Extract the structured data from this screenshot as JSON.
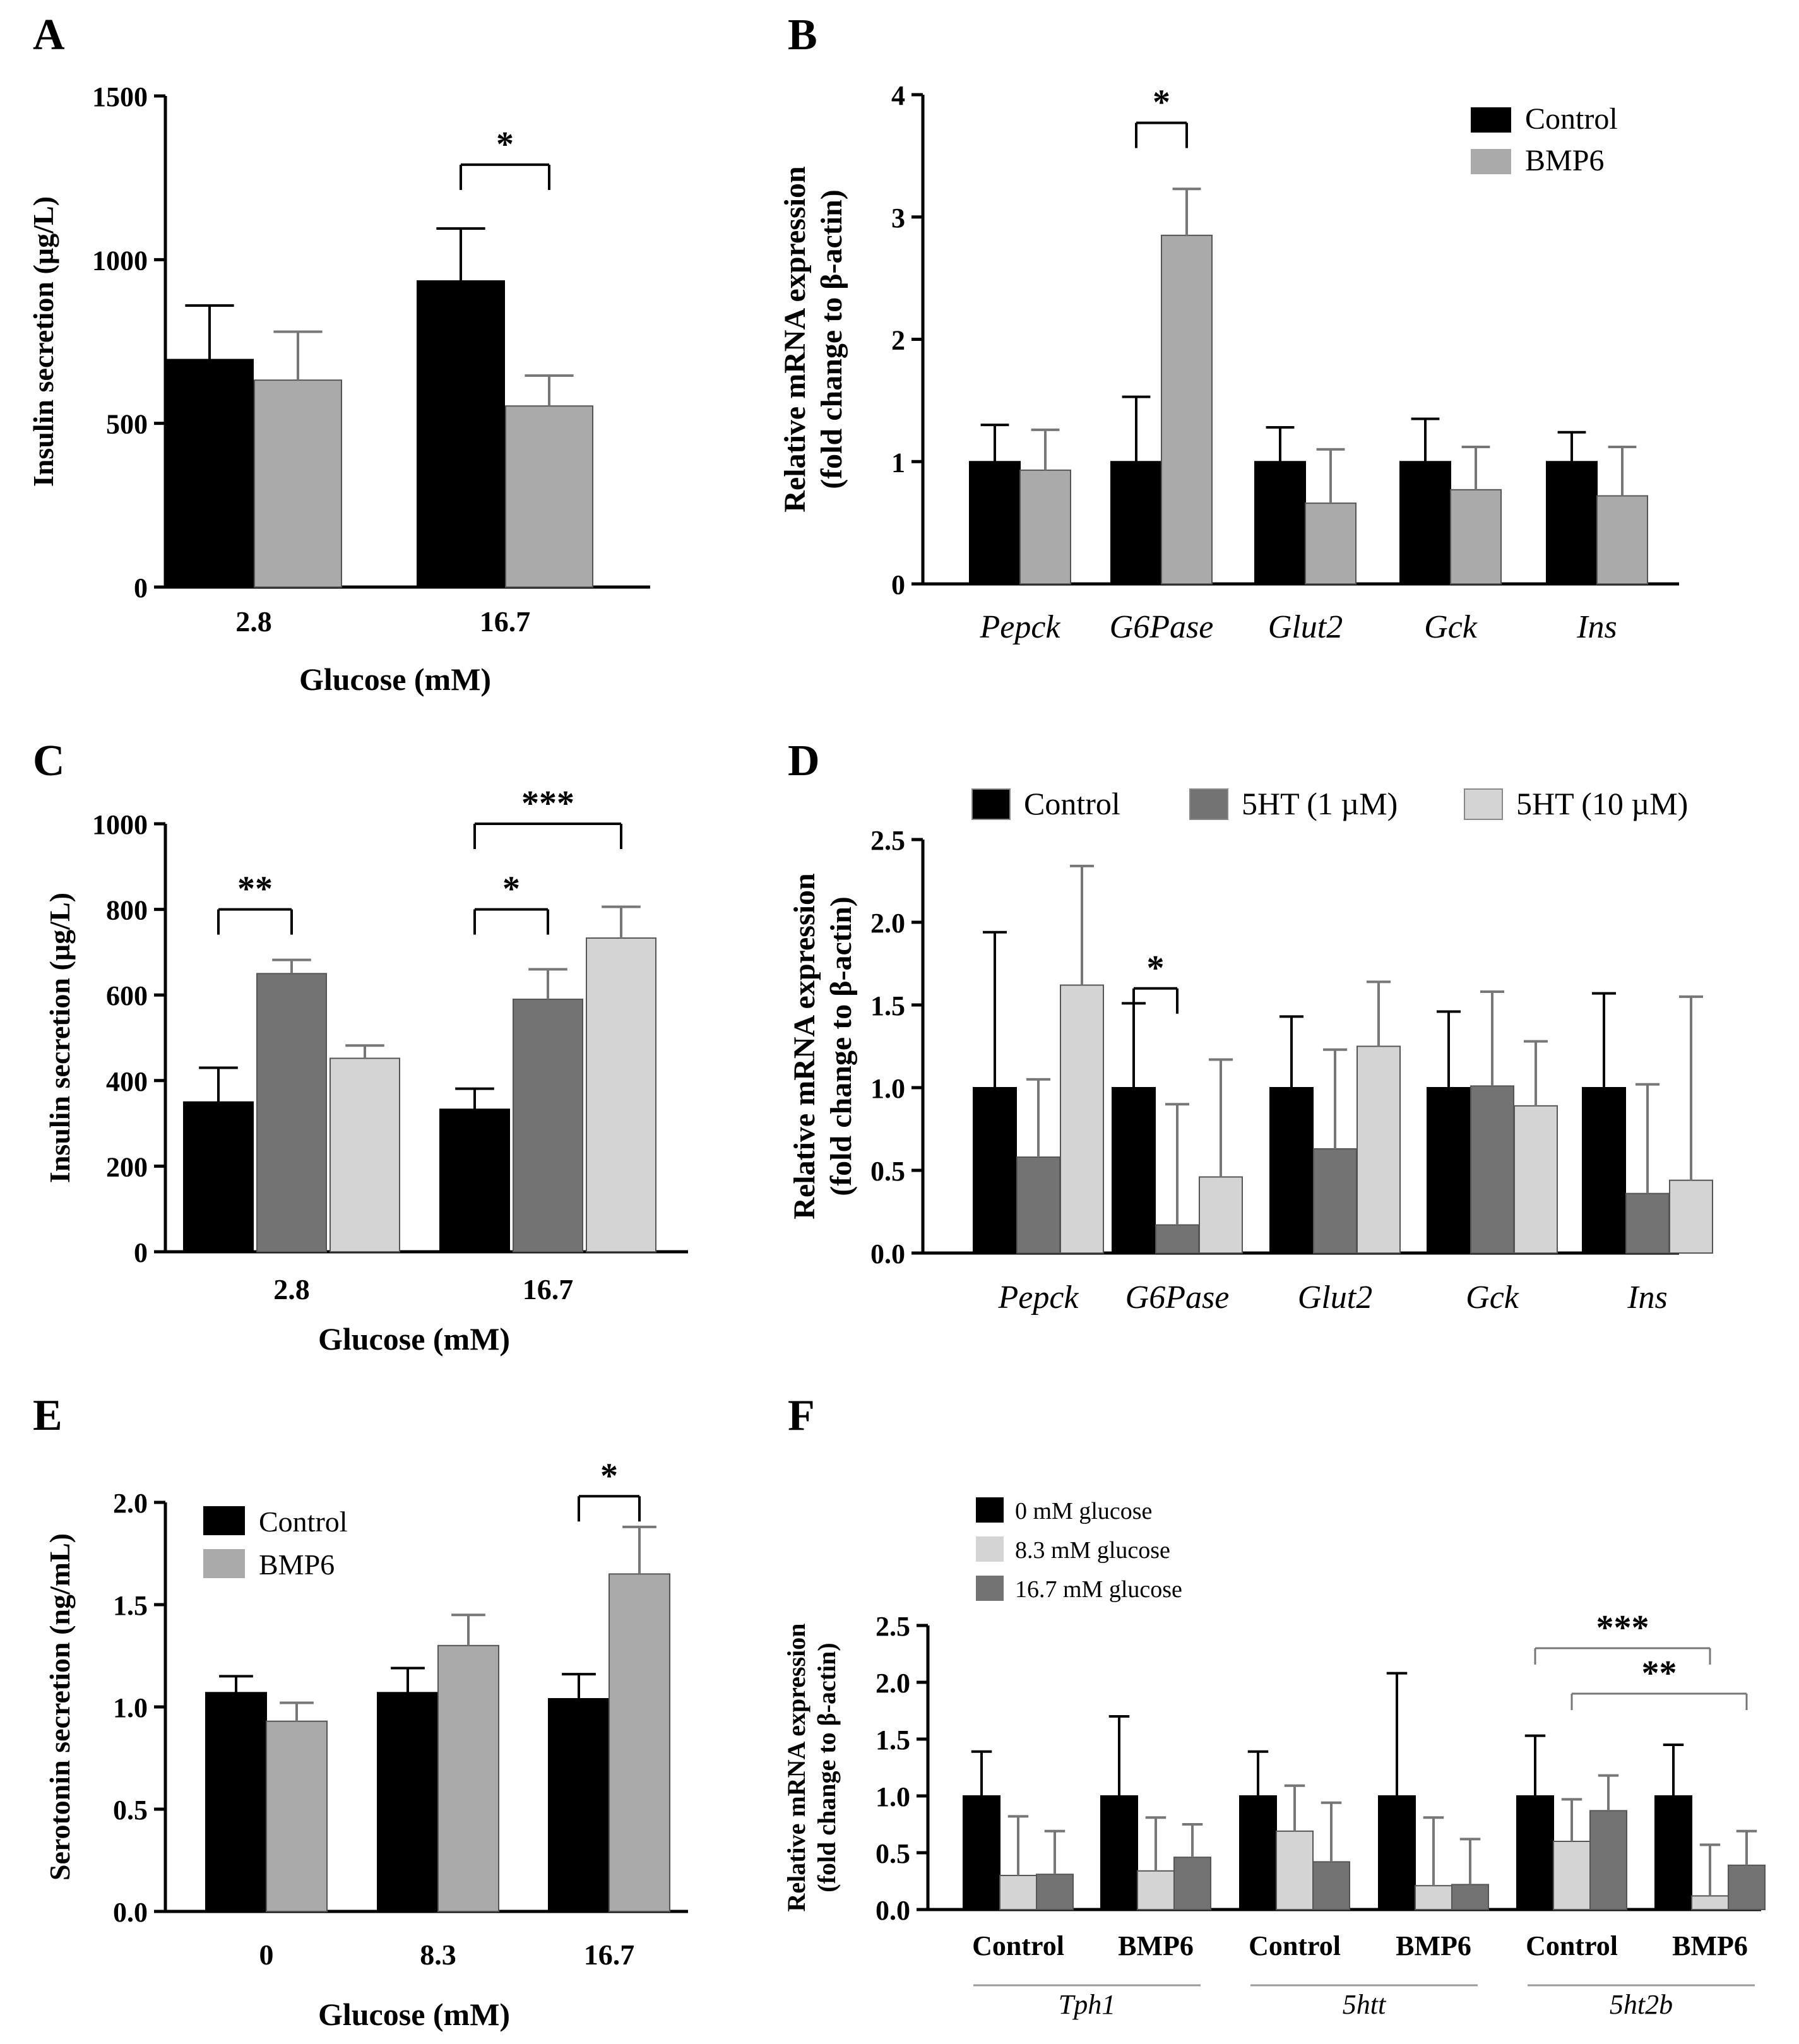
{
  "colors": {
    "black": "#000000",
    "light_gray": "#aaaaaa",
    "mid_gray": "#737373",
    "pale_gray": "#d4d4d4",
    "axis": "#000000",
    "thin_line": "#777777"
  },
  "chart_data": [
    {
      "panel": "A",
      "type": "bar",
      "categories": [
        "2.8",
        "16.7"
      ],
      "xlabel": "Glucose (mM)",
      "ylabel": "Insulin secretion (µg/L)",
      "ylim": [
        0,
        1500
      ],
      "yticks": [
        "0",
        "500",
        "1000",
        "1500"
      ],
      "series": [
        {
          "name": "Control",
          "values": [
            695,
            935
          ],
          "errors": [
            165,
            160
          ]
        },
        {
          "name": "BMP6",
          "values": [
            632,
            553
          ],
          "errors": [
            148,
            93
          ]
        }
      ],
      "annotations": [
        {
          "label": "*",
          "category": 1,
          "from_series": 0,
          "to_series": 1,
          "level": 1290
        }
      ]
    },
    {
      "panel": "B",
      "type": "bar",
      "categories": [
        "Pepck",
        "G6Pase",
        "Glut2",
        "Gck",
        "Ins"
      ],
      "xlabel": "",
      "ylabel": "Relative mRNA expression (fold change to β-actin)",
      "ylim": [
        0,
        4
      ],
      "yticks": [
        "0",
        "1",
        "2",
        "3",
        "4"
      ],
      "legend": [
        "Control",
        "BMP6"
      ],
      "series": [
        {
          "name": "Control",
          "values": [
            1.0,
            1.0,
            1.0,
            1.0,
            1.0
          ],
          "errors": [
            0.3,
            0.53,
            0.28,
            0.35,
            0.24
          ]
        },
        {
          "name": "BMP6",
          "values": [
            0.93,
            2.85,
            0.66,
            0.77,
            0.72
          ],
          "errors": [
            0.33,
            0.38,
            0.44,
            0.35,
            0.4
          ]
        }
      ],
      "annotations": [
        {
          "label": "*",
          "category": 1,
          "from_series": 0,
          "to_series": 1,
          "level": 3.77
        }
      ]
    },
    {
      "panel": "C",
      "type": "bar",
      "categories": [
        "2.8",
        "16.7"
      ],
      "xlabel": "Glucose (mM)",
      "ylabel": "Insulin secretion (µg/L)",
      "ylim": [
        0,
        1000
      ],
      "yticks": [
        "0",
        "200",
        "400",
        "600",
        "800",
        "1000"
      ],
      "series": [
        {
          "name": "Control",
          "values": [
            350,
            333
          ],
          "errors": [
            80,
            48
          ]
        },
        {
          "name": "5HT (1 µM)",
          "values": [
            650,
            590
          ],
          "errors": [
            32,
            70
          ]
        },
        {
          "name": "5HT (10 µM)",
          "values": [
            452,
            733
          ],
          "errors": [
            30,
            73
          ]
        }
      ],
      "annotations": [
        {
          "label": "**",
          "category": 0,
          "from_series": 0,
          "to_series": 1,
          "level": 800
        },
        {
          "label": "*",
          "category": 1,
          "from_series": 0,
          "to_series": 1,
          "level": 800
        },
        {
          "label": "***",
          "category": 1,
          "from_series": 0,
          "to_series": 2,
          "level": 1000
        }
      ]
    },
    {
      "panel": "D",
      "type": "bar",
      "categories": [
        "Pepck",
        "G6Pase",
        "Glut2",
        "Gck",
        "Ins"
      ],
      "xlabel": "",
      "ylabel": "Relative mRNA expression (fold change to β-actin)",
      "ylim": [
        0,
        2.5
      ],
      "yticks": [
        "0.0",
        "0.5",
        "1.0",
        "1.5",
        "2.0",
        "2.5"
      ],
      "legend": [
        "Control",
        "5HT (1 µM)",
        "5HT (10 µM)"
      ],
      "series": [
        {
          "name": "Control",
          "values": [
            1.0,
            1.0,
            1.0,
            1.0,
            1.0
          ],
          "errors": [
            0.94,
            0.51,
            0.43,
            0.46,
            0.57
          ]
        },
        {
          "name": "5HT (1 µM)",
          "values": [
            0.58,
            0.17,
            0.63,
            1.01,
            0.36
          ],
          "errors": [
            0.47,
            0.73,
            0.6,
            0.57,
            0.66
          ]
        },
        {
          "name": "5HT (10 µM)",
          "values": [
            1.62,
            0.46,
            1.25,
            0.89,
            0.44
          ],
          "errors": [
            0.72,
            0.71,
            0.39,
            0.39,
            1.11
          ]
        }
      ],
      "annotations": [
        {
          "label": "*",
          "category": 1,
          "from_series": 0,
          "to_series": 1,
          "level": 1.6
        }
      ]
    },
    {
      "panel": "E",
      "type": "bar",
      "categories": [
        "0",
        "8.3",
        "16.7"
      ],
      "xlabel": "Glucose (mM)",
      "ylabel": "Serotonin secretion (ng/mL)",
      "ylim": [
        0,
        2.0
      ],
      "yticks": [
        "0.0",
        "0.5",
        "1.0",
        "1.5",
        "2.0"
      ],
      "legend": [
        "Control",
        "BMP6"
      ],
      "series": [
        {
          "name": "Control",
          "values": [
            1.07,
            1.07,
            1.04
          ],
          "errors": [
            0.08,
            0.12,
            0.12
          ]
        },
        {
          "name": "BMP6",
          "values": [
            0.93,
            1.3,
            1.65
          ],
          "errors": [
            0.09,
            0.15,
            0.23
          ]
        }
      ],
      "annotations": [
        {
          "label": "*",
          "category": 2,
          "from_series": 0,
          "to_series": 1,
          "level": 2.03
        }
      ]
    },
    {
      "panel": "F",
      "type": "bar",
      "categories": [
        "Control",
        "BMP6",
        "Control",
        "BMP6",
        "Control",
        "BMP6"
      ],
      "groups": [
        "Tph1",
        "5htt",
        "5ht2b"
      ],
      "xlabel": "",
      "ylabel": "Relative mRNA expression (fold change to β-actin)",
      "ylim": [
        0,
        2.5
      ],
      "yticks": [
        "0.0",
        "0.5",
        "1.0",
        "1.5",
        "2.0",
        "2.5"
      ],
      "legend": [
        "0 mM glucose",
        "8.3 mM glucose",
        "16.7 mM glucose"
      ],
      "series": [
        {
          "name": "0 mM glucose",
          "values": [
            1.0,
            1.0,
            1.0,
            1.0,
            1.0,
            1.0
          ],
          "errors": [
            0.39,
            0.7,
            0.39,
            1.08,
            0.53,
            0.45
          ]
        },
        {
          "name": "8.3 mM glucose",
          "values": [
            0.3,
            0.34,
            0.69,
            0.21,
            0.6,
            0.12
          ],
          "errors": [
            0.52,
            0.47,
            0.4,
            0.6,
            0.37,
            0.45
          ]
        },
        {
          "name": "16.7 mM glucose",
          "values": [
            0.31,
            0.46,
            0.42,
            0.22,
            0.87,
            0.39
          ],
          "errors": [
            0.38,
            0.29,
            0.52,
            0.4,
            0.31,
            0.3
          ]
        }
      ],
      "annotations": [
        {
          "label": "***",
          "from": [
            4,
            0
          ],
          "to": [
            5,
            1
          ],
          "level": 2.3
        },
        {
          "label": "**",
          "from": [
            4,
            1
          ],
          "to": [
            5,
            2
          ],
          "level": 1.9
        }
      ]
    }
  ]
}
